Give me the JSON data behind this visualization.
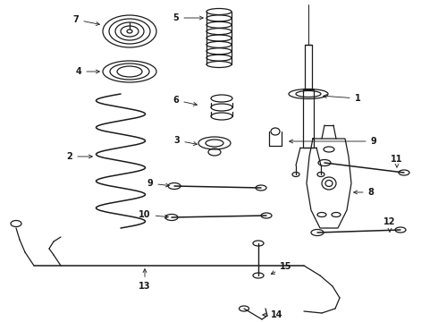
{
  "background": "#ffffff",
  "line_color": "#1a1a1a",
  "lw": 0.9,
  "figsize": [
    4.9,
    3.6
  ],
  "dpi": 100
}
